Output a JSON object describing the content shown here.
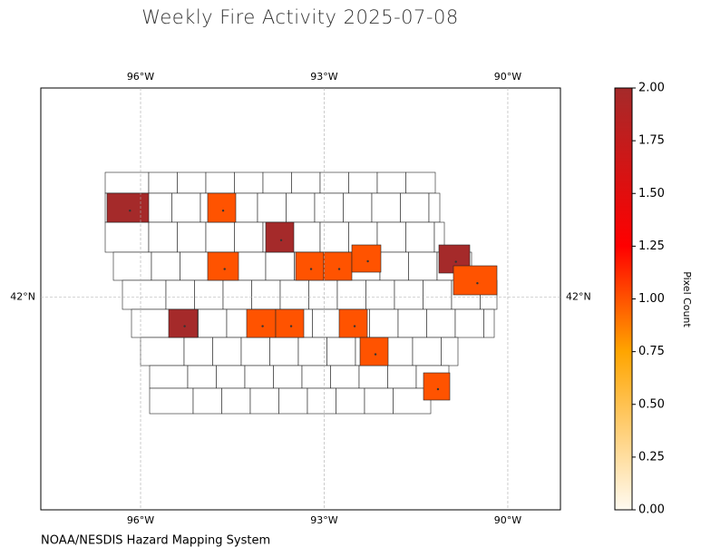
{
  "chart_data": {
    "type": "choropleth",
    "title": "Weekly Fire Activity 2025-07-08",
    "source": "NOAA/NESDIS Hazard Mapping System",
    "xlim": [
      -97.63,
      -89.14
    ],
    "ylim": [
      39.39,
      44.56
    ],
    "xticks": [
      {
        "value": -96,
        "label": "96°W"
      },
      {
        "value": -93,
        "label": "93°W"
      },
      {
        "value": -90,
        "label": "90°W"
      }
    ],
    "yticks": [
      {
        "value": 42,
        "label": "42°N"
      }
    ],
    "grid": true,
    "values": [
      2,
      1,
      2,
      1,
      1,
      1,
      1,
      2,
      1,
      2,
      1,
      1,
      1,
      1,
      1
    ],
    "colorbar": {
      "label": "Pixel Count",
      "lim": [
        0,
        2
      ],
      "ticks": [
        {
          "value": 0,
          "label": "0.00"
        },
        {
          "value": 0.25,
          "label": "0.25"
        },
        {
          "value": 0.5,
          "label": "0.50"
        },
        {
          "value": 0.75,
          "label": "0.75"
        },
        {
          "value": 1,
          "label": "1.00"
        },
        {
          "value": 1.25,
          "label": "1.25"
        },
        {
          "value": 1.5,
          "label": "1.50"
        },
        {
          "value": 1.75,
          "label": "1.75"
        },
        {
          "value": 2,
          "label": "2.00"
        }
      ],
      "colormap": [
        [
          0,
          "#fffaf0"
        ],
        [
          0.75,
          "#ffa500"
        ],
        [
          1.25,
          "#ff0000"
        ],
        [
          2,
          "#a52a2a"
        ]
      ]
    }
  }
}
